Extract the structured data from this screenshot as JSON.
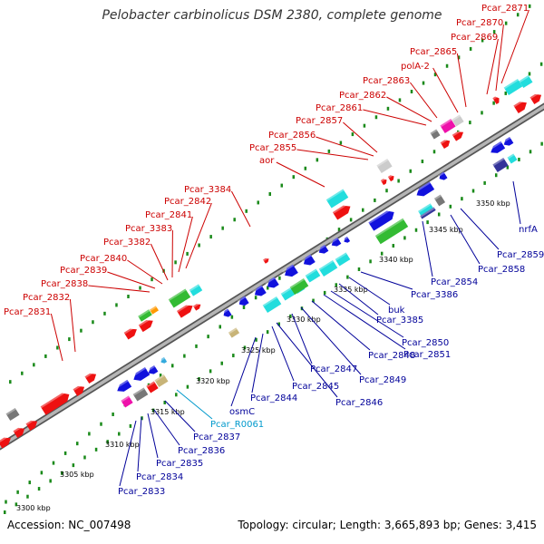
{
  "title": "Pelobacter carbinolicus DSM 2380, complete genome",
  "footer": {
    "accession": "Accession: NC_007498",
    "summary": "Topology: circular; Length: 3,665,893 bp; Genes: 3,415"
  },
  "colors": {
    "backbone": "#8c8c8c",
    "tick": "#1a8a1a",
    "label_top": "#cc0000",
    "label_bottom": "#000099",
    "label_rna": "#0099cc",
    "gene_red": "#ee1111",
    "gene_blue": "#1111dd",
    "gene_cyan": "#22dddd",
    "gene_green": "#33bb33",
    "gene_magenta": "#ee11aa",
    "gene_gray": "#777777",
    "gene_navy": "#333399",
    "gene_orange": "#ff9900",
    "gene_tan": "#c8b478",
    "gene_lightgray": "#cccccc"
  },
  "scale_labels": [
    "3300 kbp",
    "3305 kbp",
    "3310 kbp",
    "3315 kbp",
    "3320 kbp",
    "3325 kbp",
    "3330 kbp",
    "3335 kbp",
    "3340 kbp",
    "3345 kbp",
    "3350 kbp"
  ],
  "top_labels": [
    "Pcar_2871",
    "Pcar_2870",
    "Pcar_2869",
    "Pcar_2865",
    "polA-2",
    "Pcar_2863",
    "Pcar_2862",
    "Pcar_2861",
    "Pcar_2857",
    "Pcar_2856",
    "Pcar_2855",
    "aor",
    "Pcar_3384",
    "Pcar_2842",
    "Pcar_2841",
    "Pcar_3383",
    "Pcar_3382",
    "Pcar_2840",
    "Pcar_2839",
    "Pcar_2838",
    "Pcar_2832",
    "Pcar_2831"
  ],
  "bottom_labels": [
    "nrfA",
    "Pcar_2859",
    "Pcar_2858",
    "Pcar_2854",
    "Pcar_3386",
    "buk",
    "Pcar_3385",
    "Pcar_2850",
    "Pcar_2851",
    "Pcar_2848",
    "Pcar_2849",
    "Pcar_2847",
    "Pcar_2846",
    "Pcar_2845",
    "Pcar_2844",
    "osmC",
    "Pcar_R0061",
    "Pcar_2837",
    "Pcar_2836",
    "Pcar_2835",
    "Pcar_2834",
    "Pcar_2833"
  ]
}
